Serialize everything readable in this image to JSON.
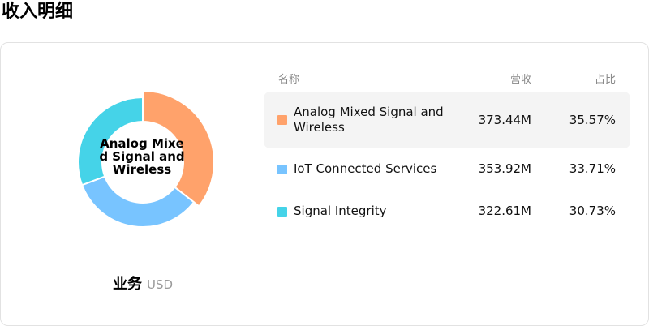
{
  "page": {
    "title": "收入明细"
  },
  "caption": {
    "title": "业务",
    "unit": "USD"
  },
  "center_label": "Analog Mixed Signal and Wireless",
  "table": {
    "headers": {
      "name": "名称",
      "revenue": "营收",
      "share": "占比"
    },
    "rows": [
      {
        "name": "Analog Mixed Signal and Wireless",
        "revenue": "373.44M",
        "share": "35.57%",
        "color": "#FFA26B"
      },
      {
        "name": "IoT Connected Services",
        "revenue": "353.92M",
        "share": "33.71%",
        "color": "#78C4FF"
      },
      {
        "name": "Signal Integrity",
        "revenue": "322.61M",
        "share": "30.73%",
        "color": "#45D3E8"
      }
    ]
  },
  "chart_data": {
    "type": "pie",
    "categories": [
      "Analog Mixed Signal and Wireless",
      "IoT Connected Services",
      "Signal Integrity"
    ],
    "values": [
      373.44,
      353.92,
      322.61
    ],
    "shares_pct": [
      35.57,
      33.71,
      30.73
    ],
    "colors": [
      "#FFA26B",
      "#78C4FF",
      "#45D3E8"
    ],
    "donut": true,
    "active_category": "Analog Mixed Signal and Wireless"
  }
}
